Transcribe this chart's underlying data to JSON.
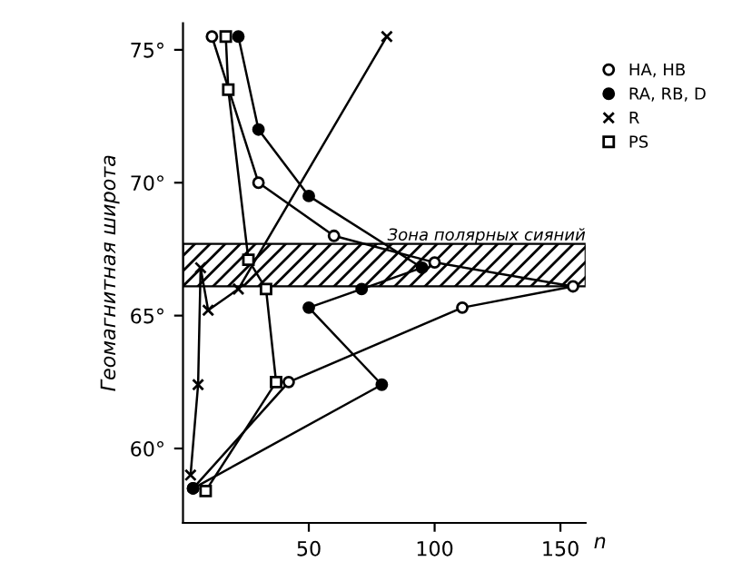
{
  "chart_data": {
    "type": "line",
    "ylabel": "Геомагнитная широта",
    "xlabel": "n",
    "xlim": [
      0,
      160
    ],
    "ylim": [
      57.2,
      76
    ],
    "xticks": [
      50,
      100,
      150
    ],
    "yticks": [
      {
        "value": 60,
        "label": "60°"
      },
      {
        "value": 65,
        "label": "65°"
      },
      {
        "value": 70,
        "label": "70°"
      },
      {
        "value": 75,
        "label": "75°"
      }
    ],
    "grid": false,
    "legend": "top right",
    "bands": [
      {
        "axis": "y",
        "from": 66.1,
        "to": 67.7,
        "label": "Зона полярных сияний",
        "color": "#000000"
      }
    ],
    "series": [
      {
        "name": "HA, HB",
        "color": "#ffffff",
        "marker": "circle",
        "x": [
          11.5,
          30,
          60,
          100,
          155,
          111,
          42,
          4
        ],
        "values": [
          75.5,
          70,
          68,
          67,
          66.1,
          65.3,
          62.5,
          58.5
        ]
      },
      {
        "name": "RA, RB, D",
        "color": "#000000",
        "marker": "circle",
        "x": [
          22,
          30,
          50,
          95,
          71,
          50,
          79,
          4
        ],
        "values": [
          75.5,
          72,
          69.5,
          66.8,
          66.0,
          65.3,
          62.4,
          58.5
        ]
      },
      {
        "name": "R",
        "color": "#000000",
        "marker": "cross",
        "x": [
          81,
          22,
          10,
          7,
          6,
          3
        ],
        "values": [
          75.5,
          66.0,
          65.2,
          66.8,
          62.4,
          59
        ]
      },
      {
        "name": "PS",
        "color": "#ffffff",
        "marker": "square",
        "x": [
          17,
          18,
          26,
          33,
          37,
          9
        ],
        "values": [
          75.5,
          73.5,
          67.1,
          66.0,
          62.5,
          58.4
        ]
      }
    ]
  }
}
